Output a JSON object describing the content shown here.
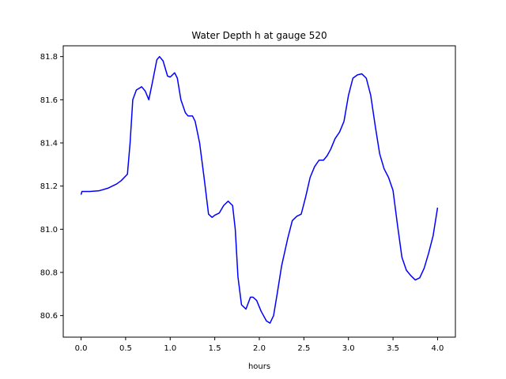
{
  "chart_data": {
    "type": "line",
    "title": "Water Depth h at gauge 520",
    "xlabel": "hours",
    "ylabel": "",
    "xlim": [
      -0.2,
      4.2
    ],
    "ylim": [
      80.5,
      81.85
    ],
    "xticks": [
      0.0,
      0.5,
      1.0,
      1.5,
      2.0,
      2.5,
      3.0,
      3.5,
      4.0
    ],
    "xtick_labels": [
      "0.0",
      "0.5",
      "1.0",
      "1.5",
      "2.0",
      "2.5",
      "3.0",
      "3.5",
      "4.0"
    ],
    "yticks": [
      80.6,
      80.8,
      81.0,
      81.2,
      81.4,
      81.6,
      81.8
    ],
    "ytick_labels": [
      "80.6",
      "80.8",
      "81.0",
      "81.2",
      "81.4",
      "81.6",
      "81.8"
    ],
    "grid": false,
    "series": [
      {
        "color": "#0000ff",
        "points": [
          [
            0.0,
            81.16
          ],
          [
            0.01,
            81.175
          ],
          [
            0.1,
            81.175
          ],
          [
            0.2,
            81.178
          ],
          [
            0.3,
            81.19
          ],
          [
            0.4,
            81.21
          ],
          [
            0.45,
            81.225
          ],
          [
            0.52,
            81.255
          ],
          [
            0.55,
            81.4
          ],
          [
            0.58,
            81.6
          ],
          [
            0.62,
            81.645
          ],
          [
            0.68,
            81.66
          ],
          [
            0.72,
            81.64
          ],
          [
            0.76,
            81.6
          ],
          [
            0.8,
            81.68
          ],
          [
            0.85,
            81.785
          ],
          [
            0.88,
            81.8
          ],
          [
            0.92,
            81.78
          ],
          [
            0.97,
            81.71
          ],
          [
            1.0,
            81.705
          ],
          [
            1.05,
            81.725
          ],
          [
            1.08,
            81.7
          ],
          [
            1.12,
            81.6
          ],
          [
            1.17,
            81.54
          ],
          [
            1.2,
            81.525
          ],
          [
            1.25,
            81.525
          ],
          [
            1.28,
            81.5
          ],
          [
            1.33,
            81.4
          ],
          [
            1.38,
            81.24
          ],
          [
            1.43,
            81.07
          ],
          [
            1.47,
            81.055
          ],
          [
            1.5,
            81.065
          ],
          [
            1.55,
            81.075
          ],
          [
            1.6,
            81.11
          ],
          [
            1.65,
            81.13
          ],
          [
            1.7,
            81.11
          ],
          [
            1.73,
            81.0
          ],
          [
            1.76,
            80.78
          ],
          [
            1.8,
            80.65
          ],
          [
            1.85,
            80.63
          ],
          [
            1.9,
            80.685
          ],
          [
            1.93,
            80.685
          ],
          [
            1.97,
            80.67
          ],
          [
            2.02,
            80.62
          ],
          [
            2.08,
            80.575
          ],
          [
            2.12,
            80.565
          ],
          [
            2.16,
            80.6
          ],
          [
            2.2,
            80.7
          ],
          [
            2.25,
            80.83
          ],
          [
            2.32,
            80.96
          ],
          [
            2.37,
            81.04
          ],
          [
            2.42,
            81.06
          ],
          [
            2.47,
            81.07
          ],
          [
            2.52,
            81.15
          ],
          [
            2.57,
            81.24
          ],
          [
            2.62,
            81.29
          ],
          [
            2.67,
            81.32
          ],
          [
            2.72,
            81.32
          ],
          [
            2.76,
            81.34
          ],
          [
            2.8,
            81.37
          ],
          [
            2.85,
            81.42
          ],
          [
            2.9,
            81.45
          ],
          [
            2.95,
            81.5
          ],
          [
            3.0,
            81.62
          ],
          [
            3.05,
            81.7
          ],
          [
            3.1,
            81.715
          ],
          [
            3.15,
            81.72
          ],
          [
            3.2,
            81.7
          ],
          [
            3.25,
            81.62
          ],
          [
            3.3,
            81.48
          ],
          [
            3.35,
            81.35
          ],
          [
            3.4,
            81.28
          ],
          [
            3.45,
            81.24
          ],
          [
            3.5,
            81.18
          ],
          [
            3.55,
            81.02
          ],
          [
            3.6,
            80.87
          ],
          [
            3.65,
            80.81
          ],
          [
            3.7,
            80.785
          ],
          [
            3.75,
            80.765
          ],
          [
            3.8,
            80.775
          ],
          [
            3.85,
            80.82
          ],
          [
            3.9,
            80.89
          ],
          [
            3.95,
            80.97
          ],
          [
            4.0,
            81.1
          ]
        ]
      }
    ]
  }
}
